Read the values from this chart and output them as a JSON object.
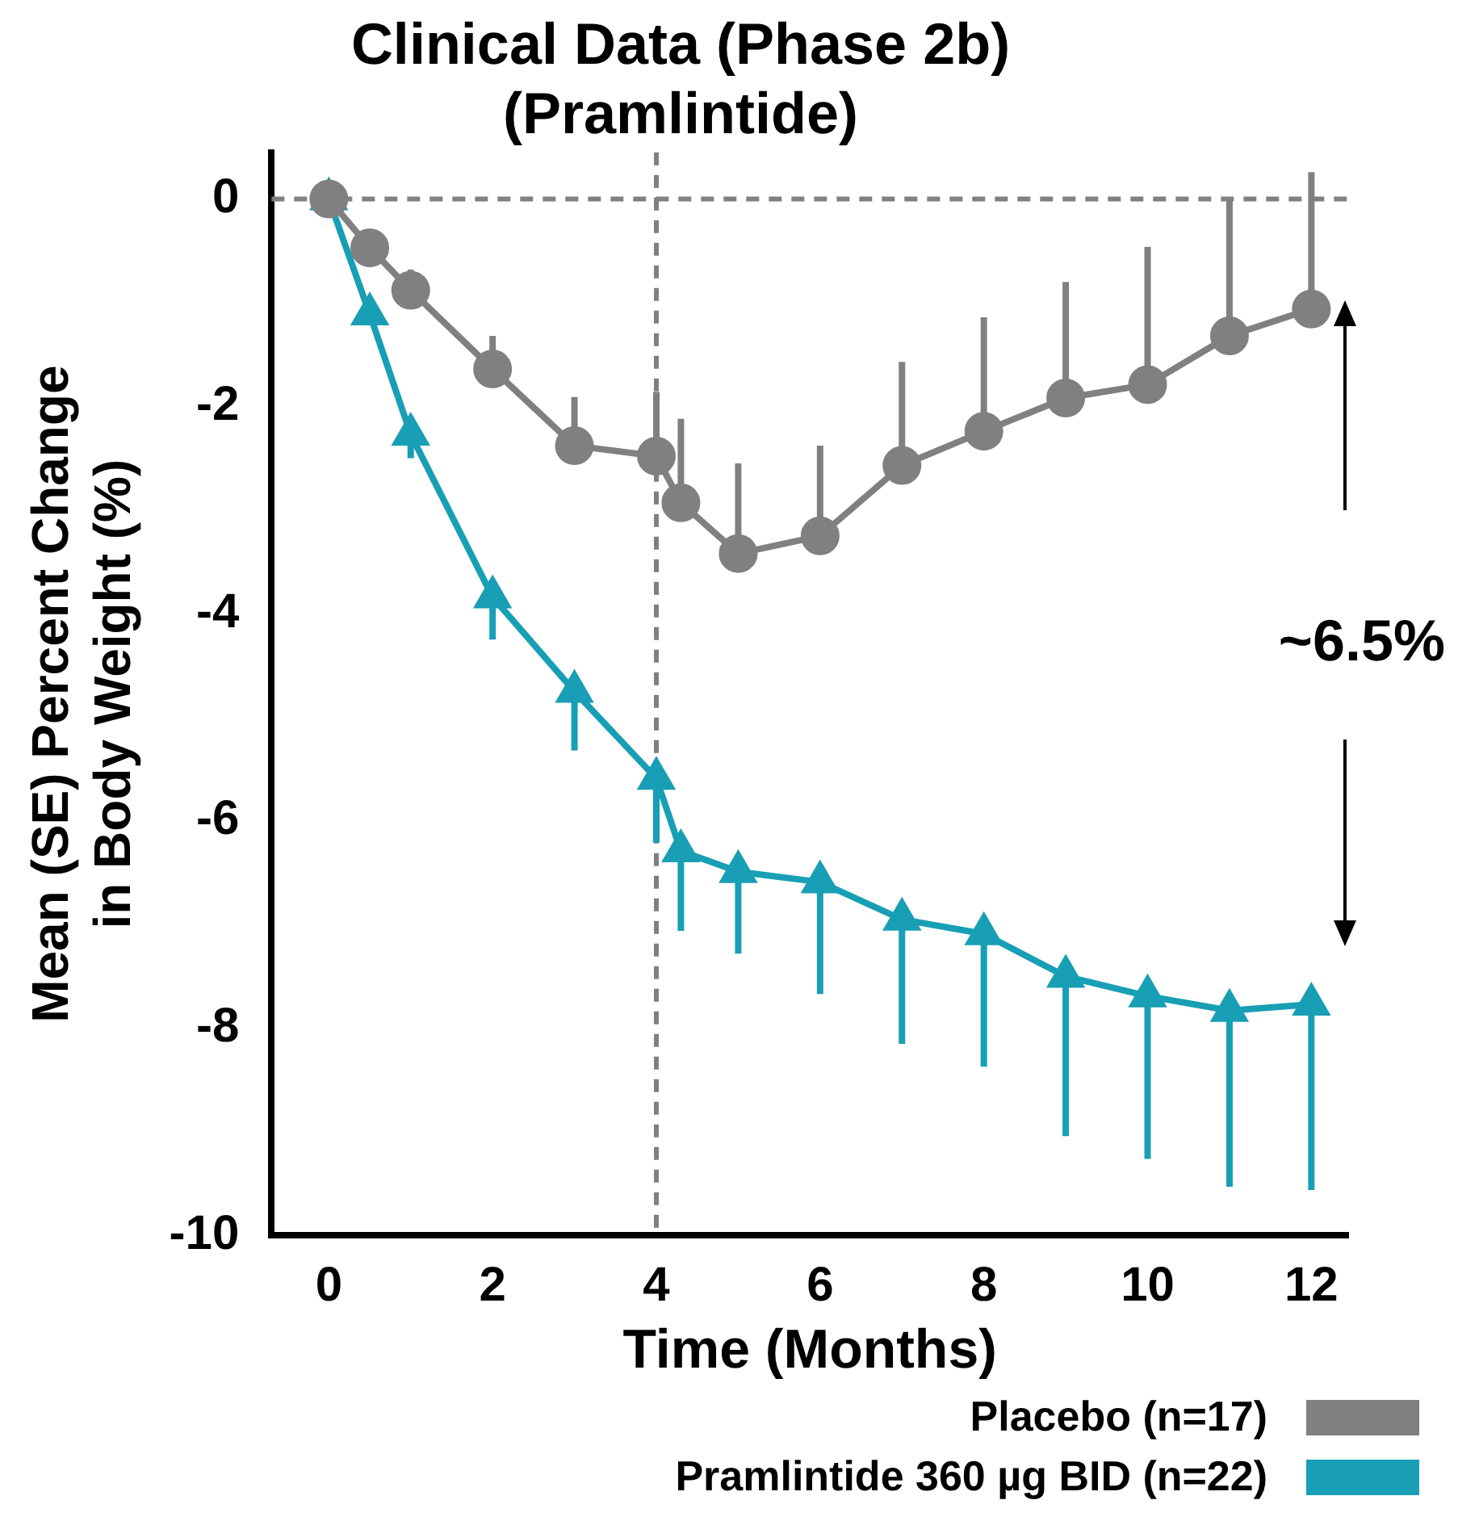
{
  "chart_data": {
    "type": "line",
    "title": "Clinical Data (Phase 2b)\n(Pramlintide)",
    "xlabel": "Time (Months)",
    "ylabel": "Mean (SE) Percent Change\nin Body Weight (%)",
    "xlim": [
      -0.7,
      12.45
    ],
    "xticks": [
      0,
      2,
      4,
      6,
      8,
      10,
      12
    ],
    "ylim": [
      -10,
      0.45
    ],
    "yticks": [
      0,
      -2,
      -4,
      -6,
      -8,
      -10
    ],
    "grid": false,
    "legend": "bottom right",
    "line_style": "solid",
    "series": [
      {
        "name": "Placebo (n=17)",
        "color": "#808080",
        "marker": "circle",
        "x": [
          0,
          0.5,
          1,
          2,
          3,
          4,
          4.3,
          5,
          6,
          7,
          8,
          9,
          10,
          11,
          12
        ],
        "values": [
          0,
          -0.47,
          -0.88,
          -1.64,
          -2.38,
          -2.48,
          -2.93,
          -3.42,
          -3.25,
          -2.57,
          -2.24,
          -1.92,
          -1.79,
          -1.32,
          -1.06
        ],
        "errors": [
          null,
          null,
          [
            -0.88,
            -0.68
          ],
          [
            -1.64,
            -1.32
          ],
          [
            -2.38,
            -1.91
          ],
          [
            -2.48,
            -1.86
          ],
          [
            -2.93,
            -2.12
          ],
          [
            -3.42,
            -2.55
          ],
          [
            -3.25,
            -2.38
          ],
          [
            -2.57,
            -1.57
          ],
          [
            -2.24,
            -1.14
          ],
          [
            -1.92,
            -0.8
          ],
          [
            -1.79,
            -0.46
          ],
          [
            -1.32,
            0.02
          ],
          [
            -1.06,
            0.26
          ]
        ]
      },
      {
        "name": "Pramlintide 360 µg BID (n=22)",
        "color": "#189fb5",
        "marker": "triangle",
        "x": [
          0,
          0.5,
          1,
          2,
          3,
          4,
          4.3,
          5,
          6,
          7,
          8,
          9,
          10,
          11,
          12
        ],
        "values": [
          0,
          -1.11,
          -2.27,
          -3.84,
          -4.75,
          -5.59,
          -6.29,
          -6.49,
          -6.59,
          -6.95,
          -7.09,
          -7.5,
          -7.69,
          -7.83,
          -7.77
        ],
        "errors": [
          null,
          null,
          [
            -2.5,
            -2.27
          ],
          [
            -4.25,
            -3.84
          ],
          [
            -5.32,
            -4.75
          ],
          [
            -6.21,
            -5.59
          ],
          [
            -7.06,
            -6.29
          ],
          [
            -7.28,
            -6.49
          ],
          [
            -7.67,
            -6.59
          ],
          [
            -8.15,
            -6.95
          ],
          [
            -8.37,
            -7.09
          ],
          [
            -9.04,
            -7.5
          ],
          [
            -9.26,
            -7.69
          ],
          [
            -9.53,
            -7.83
          ],
          [
            -9.56,
            -7.77
          ]
        ]
      }
    ],
    "ref_lines": [
      {
        "axis": "x",
        "value": 4,
        "color": "#808080",
        "line_style": "dashed"
      },
      {
        "axis": "y",
        "value": 0,
        "color": "#808080",
        "line_style": "dashed"
      }
    ],
    "annotations": [
      "~6.5%"
    ]
  }
}
